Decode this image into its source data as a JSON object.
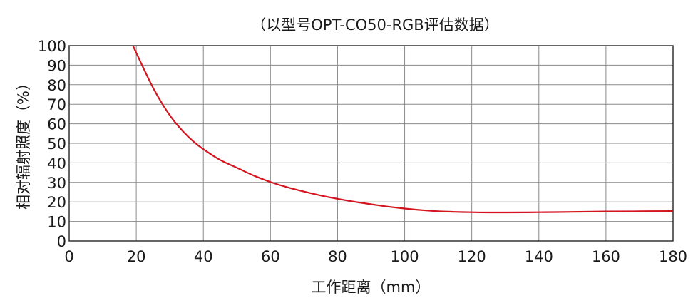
{
  "chart_data": {
    "type": "line",
    "title": "（以型号OPT-CO50-RGB评估数据）",
    "xlabel": "工作距离（mm）",
    "ylabel": "相对辐射照度（%）",
    "xlim": [
      0,
      180
    ],
    "ylim": [
      0,
      100
    ],
    "x_ticks": [
      0,
      20,
      40,
      60,
      80,
      100,
      120,
      140,
      160,
      180
    ],
    "y_ticks": [
      0,
      10,
      20,
      30,
      40,
      50,
      60,
      70,
      80,
      90,
      100
    ],
    "grid": true,
    "colors": {
      "line": "#d4141e",
      "grid": "#8a8a8a",
      "axis": "#333333"
    },
    "series": [
      {
        "x": [
          19,
          22,
          25,
          28,
          31,
          34,
          37,
          40,
          45,
          50,
          55,
          60,
          65,
          70,
          75,
          80,
          85,
          90,
          95,
          100,
          105,
          110,
          115,
          120,
          125,
          130,
          140,
          150,
          160,
          170,
          180
        ],
        "values": [
          100,
          89,
          78.5,
          69.5,
          62,
          56,
          51,
          47,
          41.5,
          37.5,
          33.5,
          30.2,
          27.5,
          25.3,
          23.3,
          21.6,
          20.1,
          18.8,
          17.6,
          16.6,
          15.8,
          15.2,
          14.9,
          14.7,
          14.6,
          14.6,
          14.7,
          14.9,
          15.1,
          15.2,
          15.3
        ]
      }
    ]
  }
}
